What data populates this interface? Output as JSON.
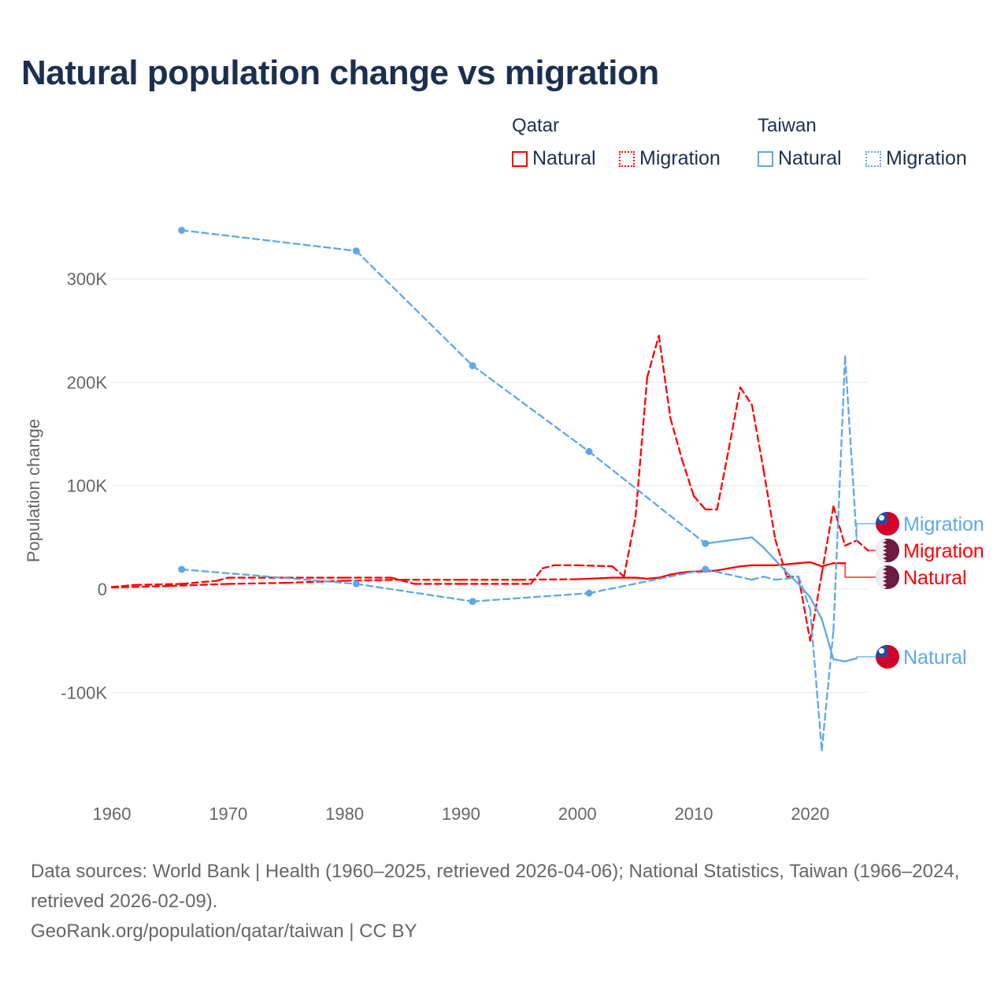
{
  "title": "Natural population change vs migration",
  "legend": {
    "groups": [
      {
        "name": "Qatar",
        "color": "#ff0000",
        "items": [
          "Natural",
          "Migration"
        ]
      },
      {
        "name": "Taiwan",
        "color": "#5ea7ea",
        "items": [
          "Natural",
          "Migration"
        ]
      }
    ]
  },
  "footer": {
    "sources": "Data sources: World Bank | Health (1960–2025, retrieved 2026-04-06); National Statistics, Taiwan (1966–2024, retrieved 2026-02-09).",
    "credit": "GeoRank.org/population/qatar/taiwan | CC BY"
  },
  "chart_data": {
    "type": "line",
    "title": "Natural population change vs migration",
    "xlabel": "",
    "ylabel": "Population change",
    "xlim": [
      1960,
      2025
    ],
    "ylim": [
      -170000,
      360000
    ],
    "x_ticks": [
      1960,
      1970,
      1980,
      1990,
      2000,
      2010,
      2020
    ],
    "y_ticks": [
      {
        "v": 300000,
        "label": "300K"
      },
      {
        "v": 200000,
        "label": "200K"
      },
      {
        "v": 100000,
        "label": "100K"
      },
      {
        "v": 0,
        "label": "0"
      },
      {
        "v": -100000,
        "label": "-100K"
      }
    ],
    "grid": true,
    "series": [
      {
        "country": "Qatar",
        "name": "Natural",
        "label": "Natural",
        "color": "#ff0000",
        "dashed": false,
        "markers": false,
        "x": [
          1960,
          1965,
          1970,
          1975,
          1980,
          1985,
          1990,
          1995,
          2000,
          2001,
          2002,
          2003,
          2004,
          2005,
          2006,
          2007,
          2008,
          2009,
          2010,
          2011,
          2012,
          2013,
          2014,
          2015,
          2016,
          2017,
          2018,
          2019,
          2020,
          2021,
          2022,
          2023
        ],
        "y": [
          1500,
          3000,
          5000,
          6000,
          8000,
          9000,
          9000,
          9000,
          9500,
          10000,
          10500,
          11000,
          11000,
          11000,
          10000,
          11000,
          14000,
          16000,
          17000,
          17000,
          18000,
          20000,
          22000,
          23000,
          23000,
          23000,
          24000,
          25000,
          26000,
          22000,
          25000,
          25000
        ]
      },
      {
        "country": "Qatar",
        "name": "Migration",
        "label": "Migration",
        "color": "#ff0000",
        "dashed": true,
        "markers": false,
        "x": [
          1960,
          1962,
          1966,
          1969,
          1970,
          1975,
          1980,
          1984,
          1986,
          1990,
          1996,
          1997,
          1998,
          2000,
          2003,
          2004,
          2005,
          2006,
          2007,
          2008,
          2009,
          2010,
          2011,
          2012,
          2013,
          2014,
          2015,
          2016,
          2017,
          2018,
          2019,
          2020,
          2021,
          2022,
          2023,
          2024,
          2025
        ],
        "y": [
          2000,
          4000,
          5000,
          8000,
          11000,
          11000,
          11000,
          11000,
          5000,
          5000,
          5000,
          20000,
          23000,
          23000,
          22000,
          12000,
          70000,
          205000,
          245000,
          165000,
          125000,
          90000,
          77000,
          77000,
          135000,
          195000,
          178000,
          115000,
          48000,
          12000,
          12000,
          -50000,
          15000,
          80000,
          42000,
          47000,
          37000
        ]
      },
      {
        "country": "Taiwan",
        "name": "Natural",
        "label": "Natural",
        "color": "#5ea7ea",
        "dashed": false,
        "markers": true,
        "x": [
          1966,
          1981,
          1991,
          2001,
          2011,
          2015,
          2016,
          2017,
          2018,
          2019,
          2020,
          2021,
          2022,
          2023,
          2024
        ],
        "y": [
          347000,
          327000,
          216000,
          133000,
          44000,
          50000,
          40000,
          28000,
          16000,
          5000,
          -8000,
          -29000,
          -68000,
          -70000,
          -67000
        ]
      },
      {
        "country": "Taiwan",
        "name": "Migration",
        "label": "Migration",
        "color": "#5ea7ea",
        "dashed": true,
        "markers": true,
        "x": [
          1966,
          1981,
          1991,
          2001,
          2011,
          2015,
          2016,
          2017,
          2018,
          2019,
          2020,
          2021,
          2022,
          2023,
          2024
        ],
        "y": [
          19000,
          5000,
          -12000,
          -4000,
          19000,
          9000,
          12000,
          9000,
          10000,
          12000,
          -20000,
          -156000,
          -40000,
          225000,
          47000
        ]
      }
    ]
  }
}
